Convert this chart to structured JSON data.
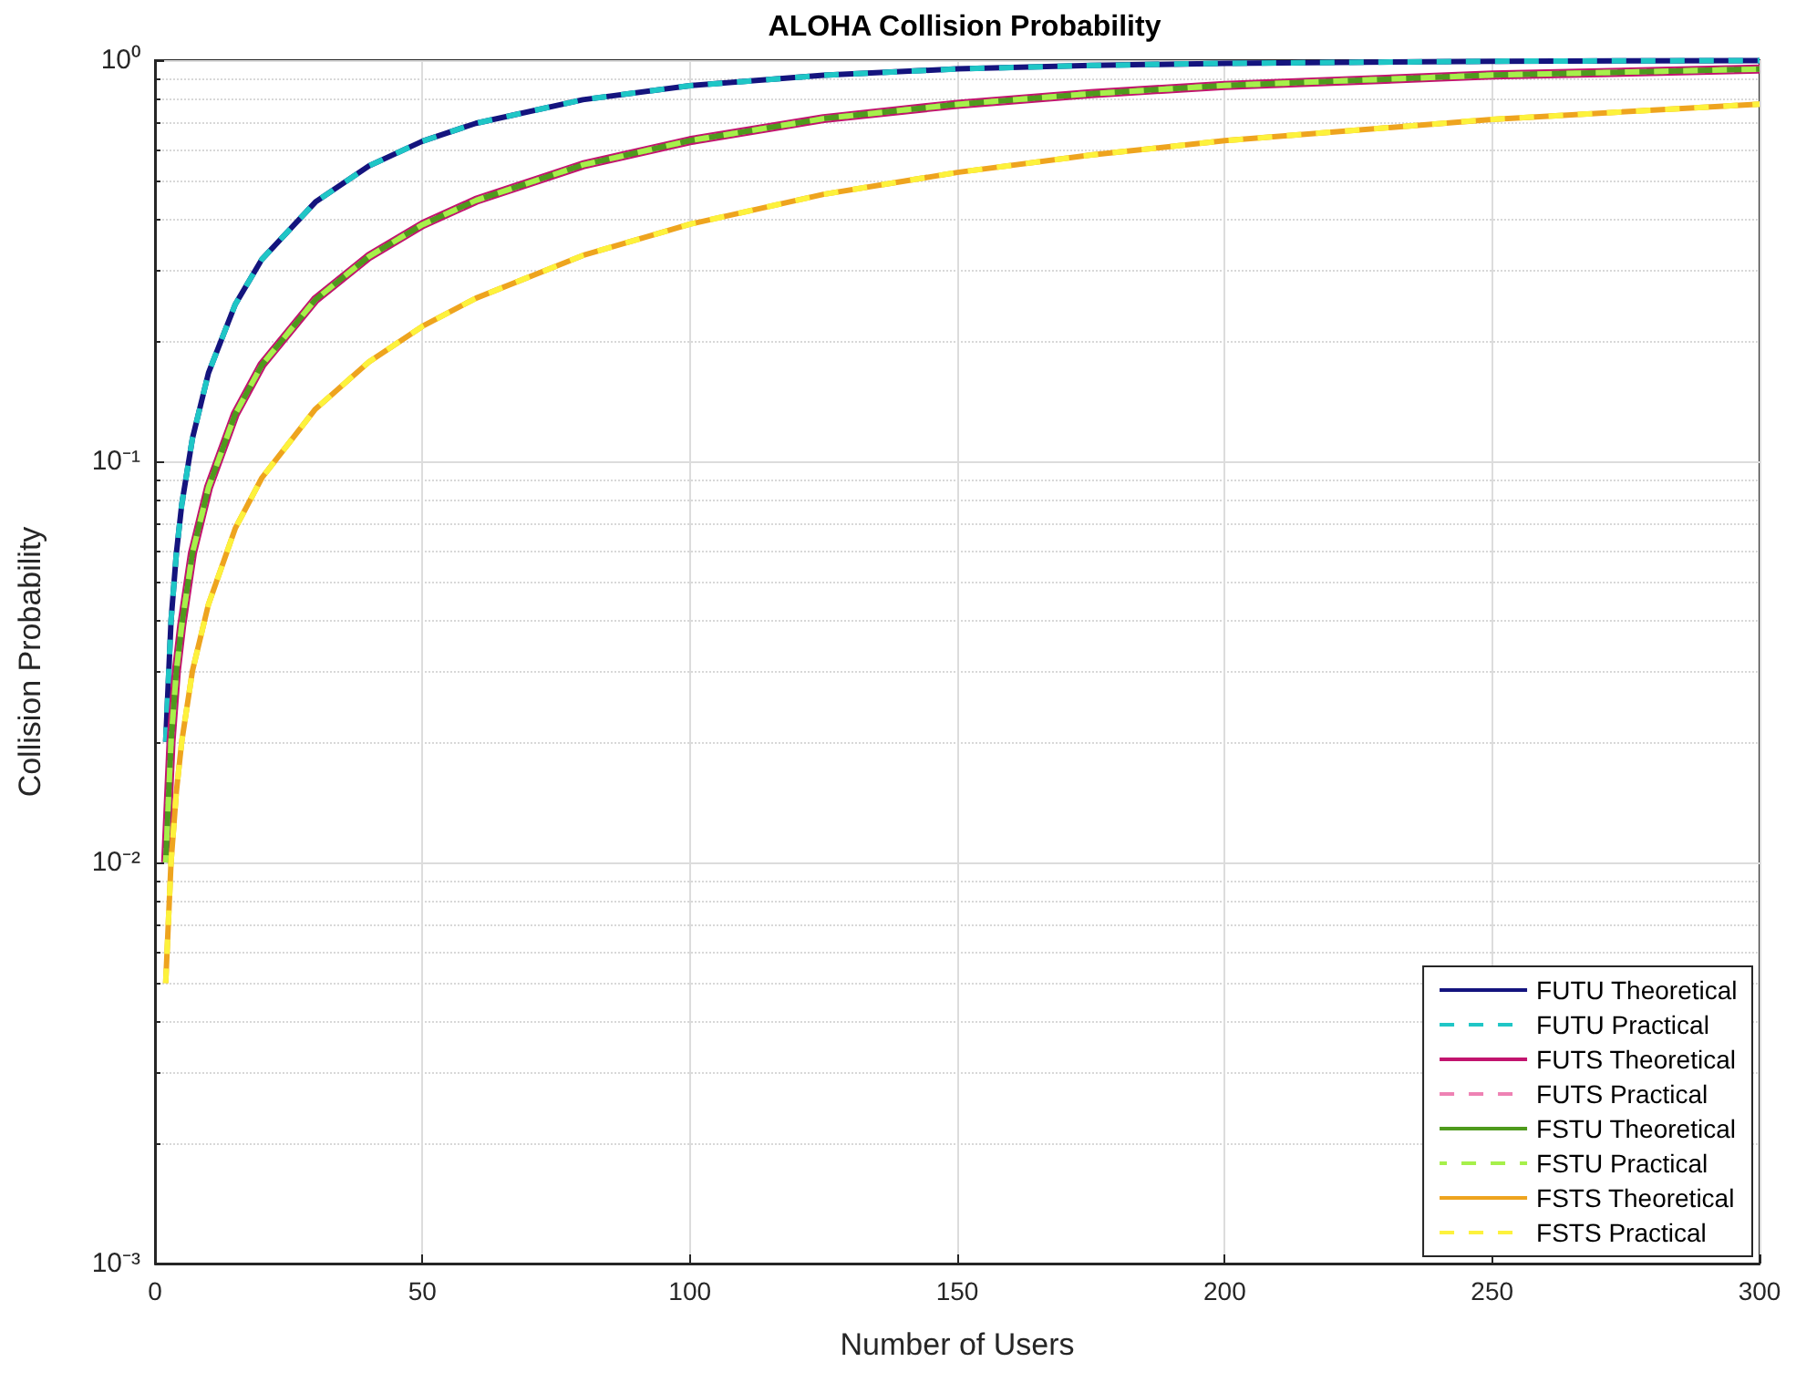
{
  "chart_data": {
    "type": "line",
    "title": "ALOHA Collision Probability",
    "xlabel": "Number of Users",
    "ylabel": "Collision Probability",
    "x": [
      2,
      3,
      4,
      5,
      7,
      10,
      15,
      20,
      30,
      40,
      50,
      60,
      80,
      100,
      125,
      150,
      175,
      200,
      250,
      300
    ],
    "series": [
      {
        "name": "FUTU Theoretical",
        "color": "#14147e",
        "line_style": "solid",
        "values": [
          0.02,
          0.04,
          0.059,
          0.078,
          0.114,
          0.166,
          0.246,
          0.319,
          0.443,
          0.545,
          0.628,
          0.696,
          0.797,
          0.864,
          0.917,
          0.951,
          0.97,
          0.982,
          0.994,
          0.998
        ]
      },
      {
        "name": "FUTU Practical",
        "color": "#1fc6c6",
        "line_style": "dashed",
        "values": [
          0.02,
          0.04,
          0.059,
          0.078,
          0.114,
          0.166,
          0.246,
          0.319,
          0.443,
          0.545,
          0.628,
          0.696,
          0.797,
          0.864,
          0.917,
          0.951,
          0.97,
          0.982,
          0.994,
          0.998
        ]
      },
      {
        "name": "FUTS Theoretical",
        "color": "#c2146e",
        "line_style": "solid",
        "values": [
          0.01,
          0.02,
          0.03,
          0.039,
          0.059,
          0.086,
          0.131,
          0.174,
          0.253,
          0.324,
          0.389,
          0.447,
          0.548,
          0.63,
          0.715,
          0.776,
          0.825,
          0.865,
          0.918,
          0.95
        ]
      },
      {
        "name": "FUTS Practical",
        "color": "#ee82b4",
        "line_style": "dashed",
        "values": [
          0.01,
          0.02,
          0.03,
          0.039,
          0.059,
          0.086,
          0.131,
          0.174,
          0.253,
          0.324,
          0.389,
          0.447,
          0.548,
          0.63,
          0.715,
          0.776,
          0.825,
          0.865,
          0.918,
          0.95
        ]
      },
      {
        "name": "FSTU Theoretical",
        "color": "#4e9a1c",
        "line_style": "solid",
        "values": [
          0.01,
          0.02,
          0.03,
          0.039,
          0.059,
          0.086,
          0.131,
          0.174,
          0.253,
          0.324,
          0.389,
          0.447,
          0.548,
          0.63,
          0.715,
          0.776,
          0.825,
          0.865,
          0.918,
          0.95
        ]
      },
      {
        "name": "FSTU Practical",
        "color": "#a6f04a",
        "line_style": "dashed",
        "values": [
          0.01,
          0.02,
          0.03,
          0.039,
          0.059,
          0.086,
          0.131,
          0.174,
          0.253,
          0.324,
          0.389,
          0.447,
          0.548,
          0.63,
          0.715,
          0.776,
          0.825,
          0.865,
          0.918,
          0.95
        ]
      },
      {
        "name": "FSTS Theoretical",
        "color": "#eea41e",
        "line_style": "solid",
        "values": [
          0.005,
          0.01,
          0.015,
          0.02,
          0.03,
          0.044,
          0.068,
          0.091,
          0.135,
          0.177,
          0.217,
          0.255,
          0.326,
          0.39,
          0.463,
          0.525,
          0.58,
          0.63,
          0.712,
          0.777
        ]
      },
      {
        "name": "FSTS Practical",
        "color": "#fdf23c",
        "line_style": "dashed",
        "values": [
          0.005,
          0.01,
          0.015,
          0.02,
          0.03,
          0.044,
          0.068,
          0.091,
          0.135,
          0.177,
          0.217,
          0.255,
          0.326,
          0.39,
          0.463,
          0.525,
          0.58,
          0.63,
          0.712,
          0.777
        ]
      }
    ],
    "xlim": [
      0,
      300
    ],
    "xticks": [
      0,
      50,
      100,
      150,
      200,
      250,
      300
    ],
    "log": "y",
    "ylim": [
      0.001,
      1
    ],
    "yticks": [
      {
        "value": 0.001,
        "label": "10⁻³"
      },
      {
        "value": 0.01,
        "label": "10⁻²"
      },
      {
        "value": 0.1,
        "label": "10⁻¹"
      },
      {
        "value": 1,
        "label": "10⁰"
      }
    ],
    "grid": true,
    "legend": "bottom right",
    "marker": "none"
  }
}
